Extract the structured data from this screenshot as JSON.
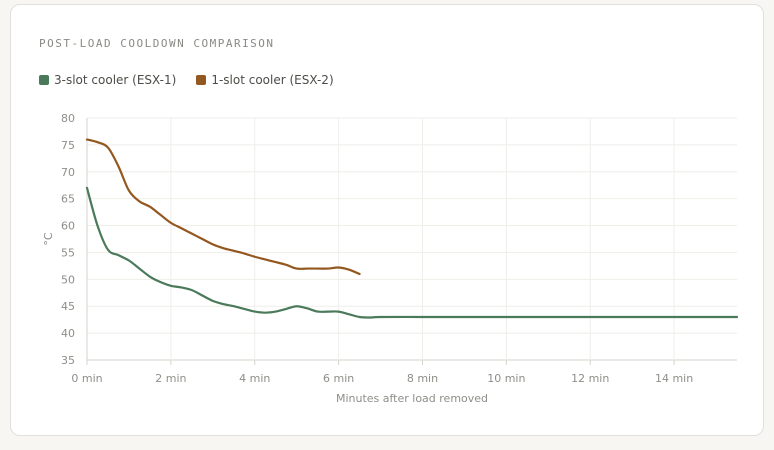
{
  "chart_data": {
    "type": "line",
    "title": "POST-LOAD COOLDOWN COMPARISON",
    "xlabel": "Minutes after load removed",
    "ylabel": "°C",
    "xlim": [
      0,
      15.5
    ],
    "ylim": [
      35,
      80
    ],
    "x_ticks": [
      0,
      2,
      4,
      6,
      8,
      10,
      12,
      14
    ],
    "x_tick_labels": [
      "0 min",
      "2 min",
      "4 min",
      "6 min",
      "8 min",
      "10 min",
      "12 min",
      "14 min"
    ],
    "y_ticks": [
      35,
      40,
      45,
      50,
      55,
      60,
      65,
      70,
      75,
      80
    ],
    "y_tick_labels": [
      "35",
      "40",
      "45",
      "50",
      "55",
      "60",
      "65",
      "70",
      "75",
      "80"
    ],
    "grid": true,
    "legend_position": "top-left",
    "series": [
      {
        "name": "3-slot cooler (ESX-1)",
        "color": "#4a7a5a",
        "x": [
          0,
          0.25,
          0.5,
          0.75,
          1,
          1.25,
          1.5,
          1.75,
          2,
          2.25,
          2.5,
          2.75,
          3,
          3.25,
          3.5,
          3.75,
          4,
          4.25,
          4.5,
          4.75,
          5,
          5.25,
          5.5,
          5.75,
          6,
          6.25,
          6.5,
          6.75,
          7,
          8,
          9,
          10,
          11,
          12,
          13,
          14,
          15.5
        ],
        "y": [
          67,
          60,
          55.5,
          54.5,
          53.5,
          52,
          50.5,
          49.5,
          48.8,
          48.5,
          48,
          47,
          46,
          45.4,
          45,
          44.5,
          44,
          43.8,
          44,
          44.5,
          45,
          44.6,
          44,
          44,
          44,
          43.5,
          43,
          42.9,
          43,
          43,
          43,
          43,
          43,
          43,
          43,
          43,
          43
        ]
      },
      {
        "name": "1-slot cooler (ESX-2)",
        "color": "#93581f",
        "x": [
          0,
          0.25,
          0.5,
          0.75,
          1,
          1.25,
          1.5,
          1.75,
          2,
          2.25,
          2.5,
          2.75,
          3,
          3.25,
          3.5,
          3.75,
          4,
          4.25,
          4.5,
          4.75,
          5,
          5.25,
          5.5,
          5.75,
          6,
          6.25,
          6.5
        ],
        "y": [
          76,
          75.5,
          74.5,
          71,
          66.5,
          64.5,
          63.5,
          62,
          60.5,
          59.5,
          58.5,
          57.5,
          56.5,
          55.8,
          55.3,
          54.8,
          54.2,
          53.7,
          53.2,
          52.7,
          52,
          52,
          52,
          52,
          52.2,
          51.8,
          51
        ]
      }
    ]
  }
}
